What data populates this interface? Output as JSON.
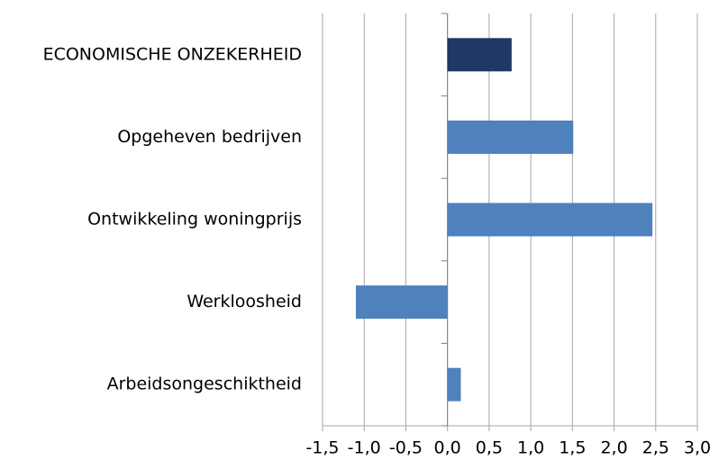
{
  "chart_data": {
    "type": "hbar",
    "categories": [
      "ECONOMISCHE ONZEKERHEID",
      "Opgeheven bedrijven",
      "Ontwikkeling woningprijs",
      "Werkloosheid",
      "Arbeidsongeschiktheid"
    ],
    "values": [
      0.77,
      1.51,
      2.46,
      -1.1,
      0.16
    ],
    "colors": [
      "#1f3864",
      "#4f81bd",
      "#4f81bd",
      "#4f81bd",
      "#4f81bd"
    ],
    "xlim": [
      -1.5,
      3.0
    ],
    "xticks": [
      {
        "value": -1.5,
        "label": "-1,5"
      },
      {
        "value": -1.0,
        "label": "-1,0"
      },
      {
        "value": -0.5,
        "label": "-0,5"
      },
      {
        "value": 0,
        "label": "0,0"
      },
      {
        "value": 0.5,
        "label": "0,5"
      },
      {
        "value": 1.0,
        "label": "1,0"
      },
      {
        "value": 1.5,
        "label": "1,5"
      },
      {
        "value": 2.0,
        "label": "2,0"
      },
      {
        "value": 2.5,
        "label": "2,5"
      },
      {
        "value": 3.0,
        "label": "3,0"
      }
    ],
    "grid": true
  }
}
